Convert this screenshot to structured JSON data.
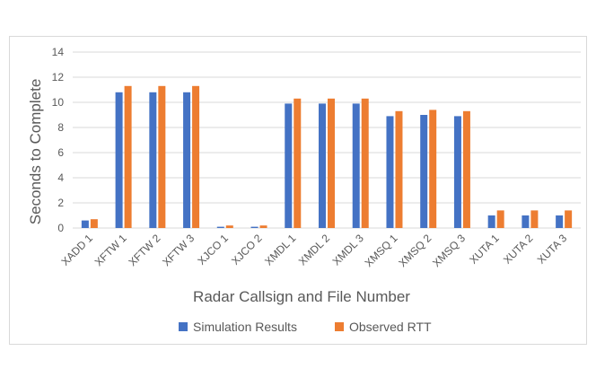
{
  "chart_data": {
    "type": "bar",
    "title": "",
    "xlabel": "Radar Callsign and File Number",
    "ylabel": "Seconds to Complete",
    "ylim": [
      0,
      14
    ],
    "yticks": [
      0,
      2,
      4,
      6,
      8,
      10,
      12,
      14
    ],
    "grid": true,
    "legend_position": "bottom",
    "categories": [
      "XADD 1",
      "XFTW 1",
      "XFTW 2",
      "XFTW 3",
      "XJCO 1",
      "XJCO 2",
      "XMDL 1",
      "XMDL 2",
      "XMDL 3",
      "XMSQ 1",
      "XMSQ 2",
      "XMSQ 3",
      "XUTA 1",
      "XUTA 2",
      "XUTA 3"
    ],
    "series": [
      {
        "name": "Simulation Results",
        "color": "#4472C4",
        "values": [
          0.6,
          10.8,
          10.8,
          10.8,
          0.1,
          0.1,
          9.9,
          9.9,
          9.9,
          8.9,
          9.0,
          8.9,
          1.0,
          1.0,
          1.0
        ]
      },
      {
        "name": "Observed RTT",
        "color": "#ED7D31",
        "values": [
          0.7,
          11.3,
          11.3,
          11.3,
          0.2,
          0.2,
          10.3,
          10.3,
          10.3,
          9.3,
          9.4,
          9.3,
          1.4,
          1.4,
          1.4
        ]
      }
    ]
  }
}
